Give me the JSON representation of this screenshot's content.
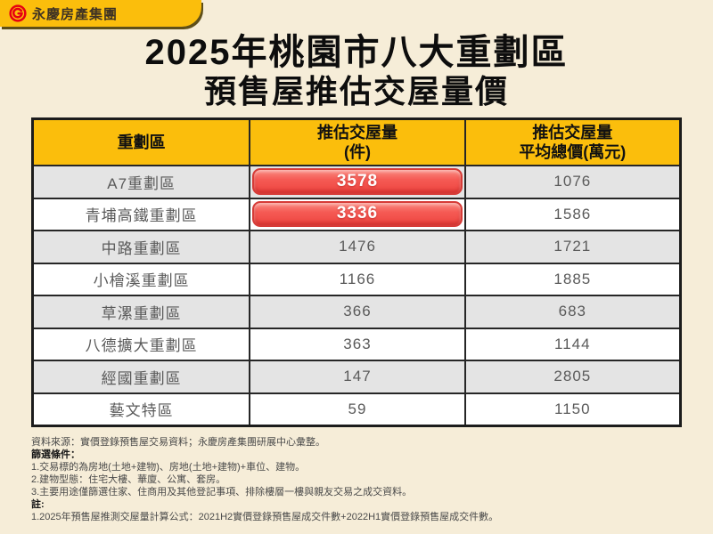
{
  "colors": {
    "page_bg": "#F6EDD8",
    "brand_yellow": "#FBBE0C",
    "table_border": "#1C1C1C",
    "row_alt_gray": "#E4E4E4",
    "highlight_red": "#F04A45",
    "highlight_red_border": "#D63B37",
    "logo_red": "#E60012",
    "body_text": "#5A5A5A"
  },
  "brand": {
    "logo_text": "永慶房產集團",
    "logo_icon": "yungching-circle-g-icon"
  },
  "title": {
    "line1": "2025年桃園市八大重劃區",
    "line2": "預售屋推估交屋量價"
  },
  "table": {
    "headers": [
      {
        "line1": "重劃區",
        "line2": ""
      },
      {
        "line1": "推估交屋量",
        "line2": "(件)"
      },
      {
        "line1": "推估交屋量",
        "line2": "平均總價(萬元)"
      }
    ],
    "rows": [
      {
        "zone": "A7重劃區",
        "volume": "3578",
        "avg_price": "1076",
        "highlight": true
      },
      {
        "zone": "青埔高鐵重劃區",
        "volume": "3336",
        "avg_price": "1586",
        "highlight": true
      },
      {
        "zone": "中路重劃區",
        "volume": "1476",
        "avg_price": "1721",
        "highlight": false
      },
      {
        "zone": "小檜溪重劃區",
        "volume": "1166",
        "avg_price": "1885",
        "highlight": false
      },
      {
        "zone": "草漯重劃區",
        "volume": "366",
        "avg_price": "683",
        "highlight": false
      },
      {
        "zone": "八德擴大重劃區",
        "volume": "363",
        "avg_price": "1144",
        "highlight": false
      },
      {
        "zone": "經國重劃區",
        "volume": "147",
        "avg_price": "2805",
        "highlight": false
      },
      {
        "zone": "藝文特區",
        "volume": "59",
        "avg_price": "1150",
        "highlight": false
      }
    ]
  },
  "footer": {
    "source": "資料來源：實價登錄預售屋交易資料；永慶房產集團研展中心彙整。",
    "filter_label": "篩選條件：",
    "filters": [
      "1.交易標的為房地(土地+建物)、房地(土地+建物)+車位、建物。",
      "2.建物型態：住宅大樓、華廈、公寓、套房。",
      "3.主要用途僅篩選住家、住商用及其他登記事項、排除樓層一樓與親友交易之成交資料。"
    ],
    "note_label": "註:",
    "notes": [
      "1.2025年預售屋推測交屋量計算公式：2021H2實價登錄預售屋成交件數+2022H1實價登錄預售屋成交件數。"
    ]
  },
  "chart_data": {
    "type": "table",
    "title": "2025年桃園市八大重劃區 預售屋推估交屋量價",
    "columns": [
      "重劃區",
      "推估交屋量(件)",
      "推估交屋量平均總價(萬元)"
    ],
    "rows": [
      [
        "A7重劃區",
        3578,
        1076
      ],
      [
        "青埔高鐵重劃區",
        3336,
        1586
      ],
      [
        "中路重劃區",
        1476,
        1721
      ],
      [
        "小檜溪重劃區",
        1166,
        1885
      ],
      [
        "草漯重劃區",
        366,
        683
      ],
      [
        "八德擴大重劃區",
        363,
        1144
      ],
      [
        "經國重劃區",
        147,
        2805
      ],
      [
        "藝文特區",
        59,
        1150
      ]
    ],
    "highlighted_values": [
      {
        "row": "A7重劃區",
        "column": "推估交屋量(件)",
        "value": 3578
      },
      {
        "row": "青埔高鐵重劃區",
        "column": "推估交屋量(件)",
        "value": 3336
      }
    ],
    "layout": {
      "header_bg": "#FBBE0C",
      "alternating_rows": true,
      "highlight_style": "red-pill"
    }
  }
}
